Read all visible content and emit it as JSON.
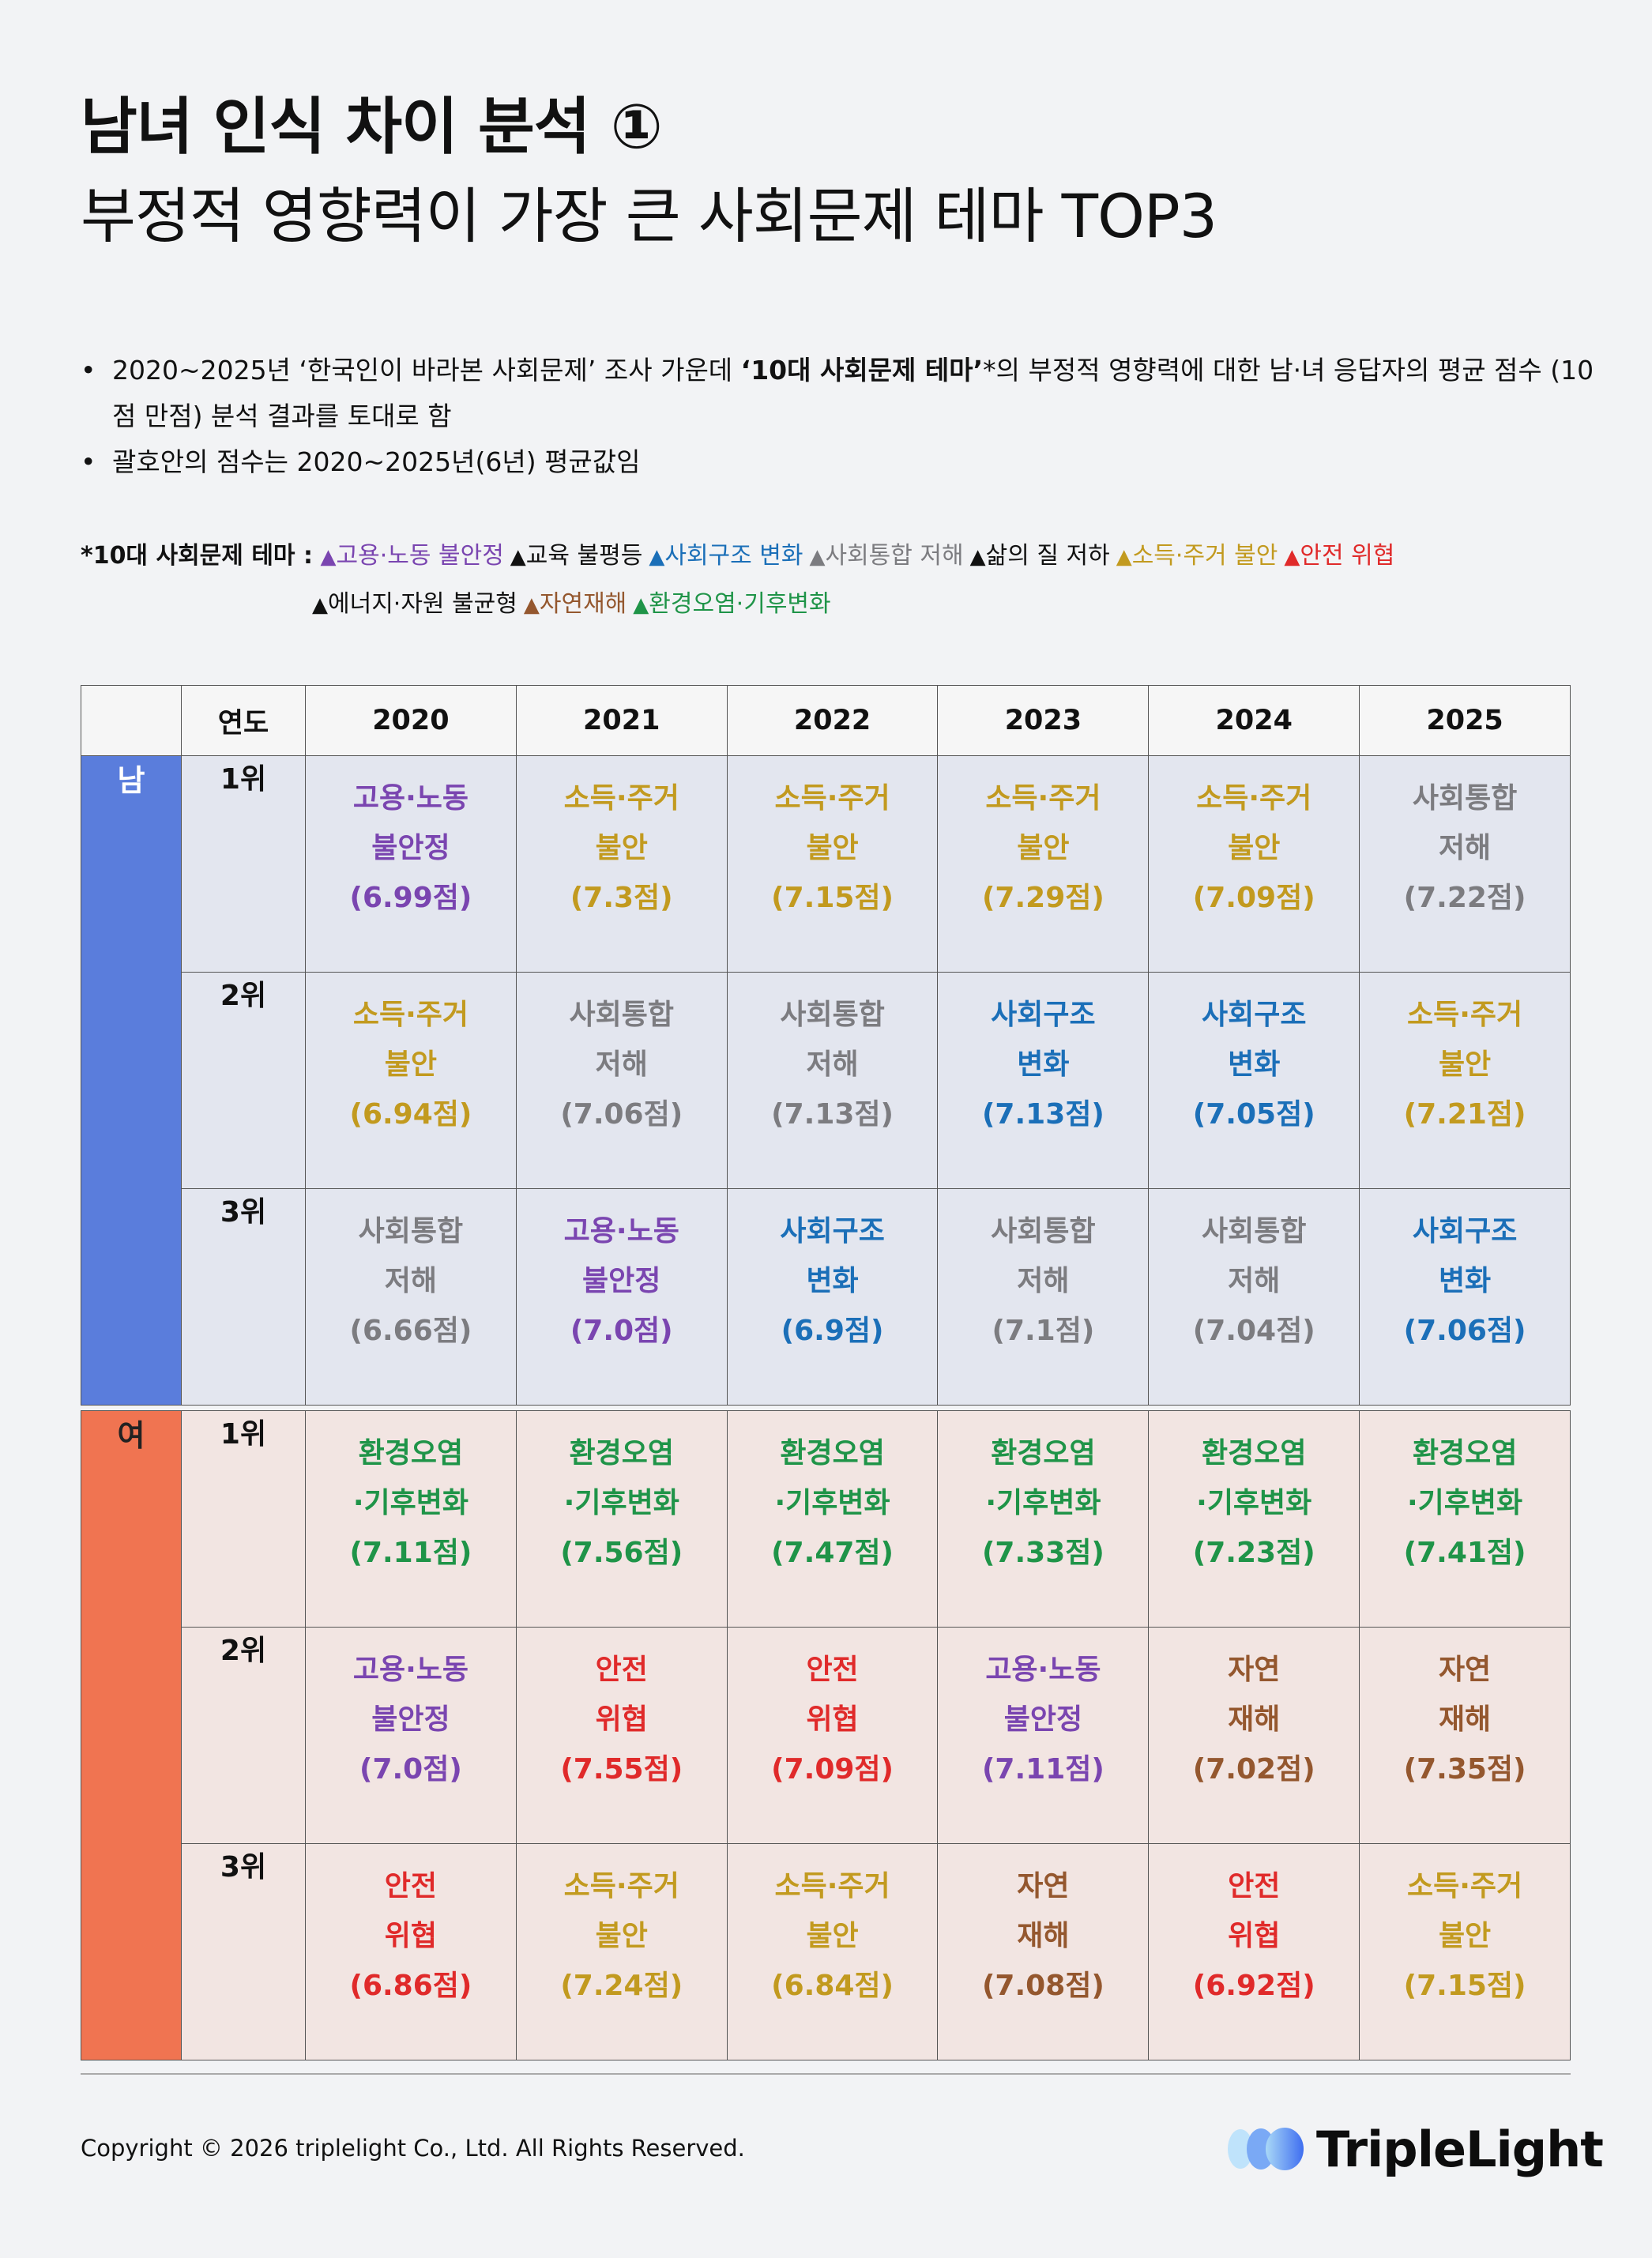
{
  "title_line1": "남녀 인식 차이 분석 ①",
  "title_line2": "부정적 영향력이 가장 큰 사회문제 테마 TOP3",
  "bullet1_pre": "2020~2025년 ‘한국인이 바라본 사회문제’ 조사 가운데 ",
  "bullet1_bold": "‘10대 사회문제 테마’",
  "bullet1_post": "*의 부정적 영향력에 대한 남·녀 응답자의 평균 점수 (10점 만점) 분석 결과를 토대로 함",
  "bullet2": "괄호안의 점수는 2020~2025년(6년) 평균값임",
  "legend_label": "*10대 사회문제 테마 :",
  "themes": [
    {
      "name": "고용·노동 불안정",
      "color": "#7a45b0"
    },
    {
      "name": "교육 불평등",
      "color": "#111111"
    },
    {
      "name": "사회구조 변화",
      "color": "#1b6fb8"
    },
    {
      "name": "사회통합 저해",
      "color": "#7c7c80"
    },
    {
      "name": "삶의 질 저하",
      "color": "#111111"
    },
    {
      "name": "소득·주거 불안",
      "color": "#c29a1f"
    },
    {
      "name": "안전 위협",
      "color": "#e02a2a"
    },
    {
      "name": "에너지·자원 불균형",
      "color": "#111111"
    },
    {
      "name": "자연재해",
      "color": "#94572e"
    },
    {
      "name": "환경오염·기후변화",
      "color": "#1f9448"
    }
  ],
  "table": {
    "year_header": "연도",
    "years": [
      "2020",
      "2021",
      "2022",
      "2023",
      "2024",
      "2025"
    ],
    "groups": [
      {
        "label": "남",
        "rows": [
          {
            "rank": "1위",
            "cells": [
              {
                "l1": "고용·노동",
                "l2": "불안정",
                "score": "(6.99점)",
                "color": "#7a45b0"
              },
              {
                "l1": "소득·주거",
                "l2": "불안",
                "score": "(7.3점)",
                "color": "#c29a1f"
              },
              {
                "l1": "소득·주거",
                "l2": "불안",
                "score": "(7.15점)",
                "color": "#c29a1f"
              },
              {
                "l1": "소득·주거",
                "l2": "불안",
                "score": "(7.29점)",
                "color": "#c29a1f"
              },
              {
                "l1": "소득·주거",
                "l2": "불안",
                "score": "(7.09점)",
                "color": "#c29a1f"
              },
              {
                "l1": "사회통합",
                "l2": "저해",
                "score": "(7.22점)",
                "color": "#7c7c80"
              }
            ]
          },
          {
            "rank": "2위",
            "cells": [
              {
                "l1": "소득·주거",
                "l2": "불안",
                "score": "(6.94점)",
                "color": "#c29a1f"
              },
              {
                "l1": "사회통합",
                "l2": "저해",
                "score": "(7.06점)",
                "color": "#7c7c80"
              },
              {
                "l1": "사회통합",
                "l2": "저해",
                "score": "(7.13점)",
                "color": "#7c7c80"
              },
              {
                "l1": "사회구조",
                "l2": "변화",
                "score": "(7.13점)",
                "color": "#1b6fb8"
              },
              {
                "l1": "사회구조",
                "l2": "변화",
                "score": "(7.05점)",
                "color": "#1b6fb8"
              },
              {
                "l1": "소득·주거",
                "l2": "불안",
                "score": "(7.21점)",
                "color": "#c29a1f"
              }
            ]
          },
          {
            "rank": "3위",
            "cells": [
              {
                "l1": "사회통합",
                "l2": "저해",
                "score": "(6.66점)",
                "color": "#7c7c80"
              },
              {
                "l1": "고용·노동",
                "l2": "불안정",
                "score": "(7.0점)",
                "color": "#7a45b0"
              },
              {
                "l1": "사회구조",
                "l2": "변화",
                "score": "(6.9점)",
                "color": "#1b6fb8"
              },
              {
                "l1": "사회통합",
                "l2": "저해",
                "score": "(7.1점)",
                "color": "#7c7c80"
              },
              {
                "l1": "사회통합",
                "l2": "저해",
                "score": "(7.04점)",
                "color": "#7c7c80"
              },
              {
                "l1": "사회구조",
                "l2": "변화",
                "score": "(7.06점)",
                "color": "#1b6fb8"
              }
            ]
          }
        ]
      },
      {
        "label": "여",
        "rows": [
          {
            "rank": "1위",
            "cells": [
              {
                "l1": "환경오염",
                "l2": "·기후변화",
                "score": "(7.11점)",
                "color": "#1f9448"
              },
              {
                "l1": "환경오염",
                "l2": "·기후변화",
                "score": "(7.56점)",
                "color": "#1f9448"
              },
              {
                "l1": "환경오염",
                "l2": "·기후변화",
                "score": "(7.47점)",
                "color": "#1f9448"
              },
              {
                "l1": "환경오염",
                "l2": "·기후변화",
                "score": "(7.33점)",
                "color": "#1f9448"
              },
              {
                "l1": "환경오염",
                "l2": "·기후변화",
                "score": "(7.23점)",
                "color": "#1f9448"
              },
              {
                "l1": "환경오염",
                "l2": "·기후변화",
                "score": "(7.41점)",
                "color": "#1f9448"
              }
            ]
          },
          {
            "rank": "2위",
            "cells": [
              {
                "l1": "고용·노동",
                "l2": "불안정",
                "score": "(7.0점)",
                "color": "#7a45b0"
              },
              {
                "l1": "안전",
                "l2": "위협",
                "score": "(7.55점)",
                "color": "#e02a2a"
              },
              {
                "l1": "안전",
                "l2": "위협",
                "score": "(7.09점)",
                "color": "#e02a2a"
              },
              {
                "l1": "고용·노동",
                "l2": "불안정",
                "score": "(7.11점)",
                "color": "#7a45b0"
              },
              {
                "l1": "자연",
                "l2": "재해",
                "score": "(7.02점)",
                "color": "#94572e"
              },
              {
                "l1": "자연",
                "l2": "재해",
                "score": "(7.35점)",
                "color": "#94572e"
              }
            ]
          },
          {
            "rank": "3위",
            "cells": [
              {
                "l1": "안전",
                "l2": "위협",
                "score": "(6.86점)",
                "color": "#e02a2a"
              },
              {
                "l1": "소득·주거",
                "l2": "불안",
                "score": "(7.24점)",
                "color": "#c29a1f"
              },
              {
                "l1": "소득·주거",
                "l2": "불안",
                "score": "(6.84점)",
                "color": "#c29a1f"
              },
              {
                "l1": "자연",
                "l2": "재해",
                "score": "(7.08점)",
                "color": "#94572e"
              },
              {
                "l1": "안전",
                "l2": "위협",
                "score": "(6.92점)",
                "color": "#e02a2a"
              },
              {
                "l1": "소득·주거",
                "l2": "불안",
                "score": "(7.15점)",
                "color": "#c29a1f"
              }
            ]
          }
        ]
      }
    ]
  },
  "copyright": "Copyright © 2026 triplelight Co., Ltd. All Rights Reserved.",
  "logo_text": "TripleLight"
}
